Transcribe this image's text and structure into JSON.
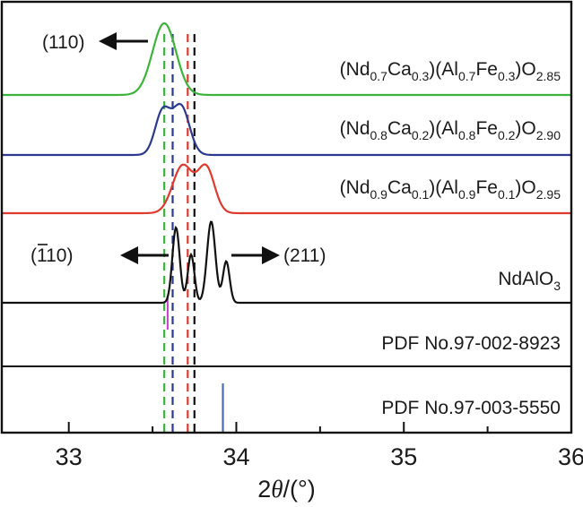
{
  "chart_data": {
    "type": "line",
    "xlabel": {
      "pre": "2",
      "italic": "θ",
      "post": "/(°)"
    },
    "xlim": [
      32.6,
      36.0
    ],
    "xticks": [
      "33",
      "34",
      "35",
      "36"
    ],
    "xtick_values": [
      33,
      34,
      35,
      36
    ],
    "minor_xticks": [
      33.5,
      34.5,
      35.5
    ],
    "y_ticks_shown": false,
    "series": [
      {
        "key": "nd07",
        "label": [
          {
            "t": "(Nd"
          },
          {
            "s": "0.7"
          },
          {
            "t": "Ca"
          },
          {
            "s": "0.3"
          },
          {
            "t": ")(Al"
          },
          {
            "s": "0.7"
          },
          {
            "t": "Fe"
          },
          {
            "s": "0.3"
          },
          {
            "t": ")O"
          },
          {
            "s": "2.85"
          }
        ],
        "color": "#3cb43c",
        "peaks": [
          {
            "x": 33.57,
            "width": 0.07,
            "height": 1.0
          }
        ],
        "peak_position": 33.57
      },
      {
        "key": "nd08",
        "label": [
          {
            "t": "(Nd"
          },
          {
            "s": "0.8"
          },
          {
            "t": "Ca"
          },
          {
            "s": "0.2"
          },
          {
            "t": ")(Al"
          },
          {
            "s": "0.8"
          },
          {
            "t": "Fe"
          },
          {
            "s": "0.2"
          },
          {
            "t": ")O"
          },
          {
            "s": "2.90"
          }
        ],
        "color": "#2b3a8f",
        "peaks": [
          {
            "x": 33.56,
            "width": 0.045,
            "height": 0.8
          },
          {
            "x": 33.67,
            "width": 0.05,
            "height": 0.9
          }
        ],
        "peak_position": 33.62
      },
      {
        "key": "nd09",
        "label": [
          {
            "t": "(Nd"
          },
          {
            "s": "0.9"
          },
          {
            "t": "Ca"
          },
          {
            "s": "0.1"
          },
          {
            "t": ")(Al"
          },
          {
            "s": "0.9"
          },
          {
            "t": "Fe"
          },
          {
            "s": "0.1"
          },
          {
            "t": ")O"
          },
          {
            "s": "2.95"
          }
        ],
        "color": "#e03a2e",
        "peaks": [
          {
            "x": 33.68,
            "width": 0.06,
            "height": 0.95
          },
          {
            "x": 33.82,
            "width": 0.05,
            "height": 0.9
          }
        ],
        "peak_position": 33.71
      },
      {
        "key": "ndalo3",
        "label": [
          {
            "t": "NdAlO"
          },
          {
            "s": "3"
          }
        ],
        "color": "#111111",
        "peaks": [
          {
            "x": 33.64,
            "width": 0.022,
            "height": 1.0
          },
          {
            "x": 33.73,
            "width": 0.02,
            "height": 0.64
          },
          {
            "x": 33.85,
            "width": 0.025,
            "height": 1.08
          },
          {
            "x": 33.94,
            "width": 0.02,
            "height": 0.55
          }
        ],
        "peak_position": 33.75
      }
    ],
    "reference_patterns": [
      {
        "key": "pdf1",
        "label": "PDF No.97-002-8923",
        "line_color": "#111111",
        "peaks": []
      },
      {
        "key": "pdf2",
        "label": "PDF No.97-003-5550",
        "line_color": "#111111",
        "peaks": [
          {
            "x": 33.92,
            "color": "#4a6fb0"
          }
        ]
      }
    ],
    "annotations": [
      {
        "key": "a110",
        "text": "(110)",
        "arrow": "left"
      },
      {
        "key": "a1bar10",
        "text": "(",
        "bar_text": "1",
        "rest": "10)",
        "arrow": "left"
      },
      {
        "key": "a211",
        "text": "(211)",
        "arrow": "right"
      }
    ],
    "guide_lines": [
      {
        "x": 33.57,
        "color": "#3cb43c"
      },
      {
        "x": 33.62,
        "color": "#2b3a8f"
      },
      {
        "x": 33.71,
        "color": "#e03a2e"
      },
      {
        "x": 33.75,
        "color": "#111111"
      }
    ],
    "magenta_marker": {
      "x": 33.59,
      "color": "#cc3ccc"
    }
  }
}
